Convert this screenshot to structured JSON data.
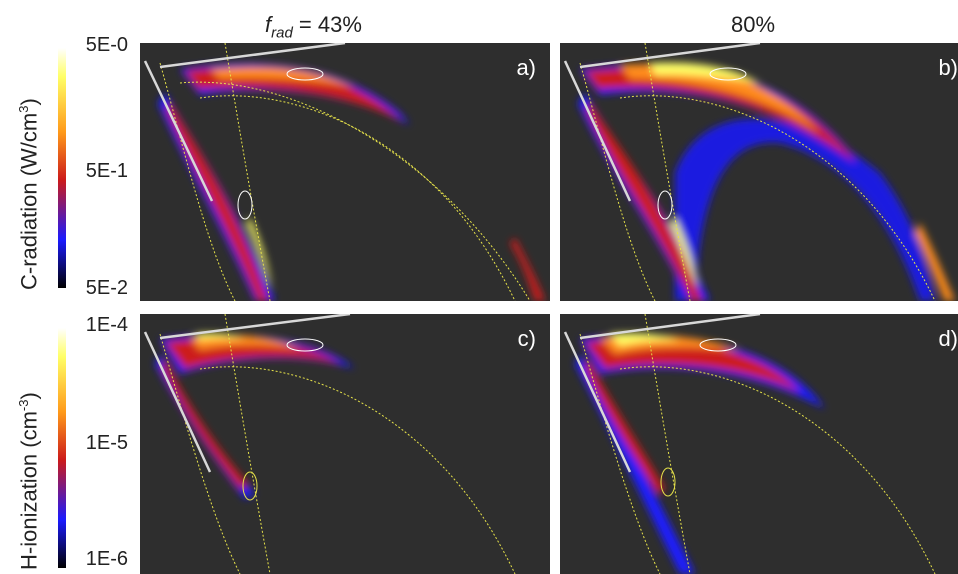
{
  "columns": {
    "left_prefix": "f",
    "left_sub": "rad",
    "left_value": " = 43%",
    "right": "80%"
  },
  "rows": [
    {
      "quantity": "C-radiation (W/cm",
      "exp": "3",
      "close": ")",
      "ticks": [
        "5E-0",
        "5E-1",
        "5E-2"
      ]
    },
    {
      "quantity": "H-ionization (cm",
      "exp": "-3",
      "close": ")",
      "ticks": [
        "1E-4",
        "1E-5",
        "1E-6"
      ]
    }
  ],
  "panels": [
    "a)",
    "b)",
    "c)",
    "d)"
  ],
  "colors": {
    "background": "#2e2e2e",
    "separatrix": "#e6e24a",
    "target": "#d8d8d8",
    "colormap": [
      "#000000",
      "#1a1aff",
      "#cc1a1a",
      "#ff8c1a",
      "#ffff66",
      "#ffffff"
    ]
  }
}
